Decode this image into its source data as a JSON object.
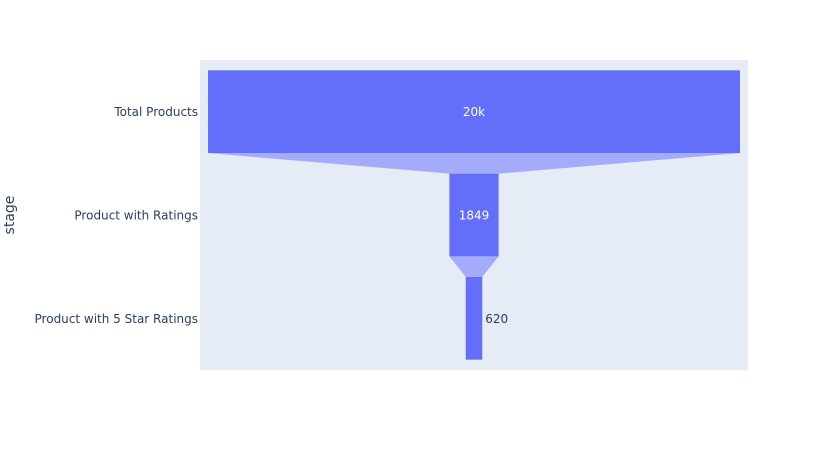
{
  "chart_data": {
    "type": "funnel",
    "ylabel": "stage",
    "categories": [
      "Total Products",
      "Product with Ratings",
      "Product with 5 Star Ratings"
    ],
    "values": [
      20000,
      1849,
      620
    ],
    "value_labels": [
      "20k",
      "1849",
      "620"
    ],
    "grid": false,
    "legend": "none",
    "colors": {
      "bar": "#636efa",
      "connector": "#a5abfb",
      "plot_bg": "#e5ecf6",
      "text_dark": "#2a3f5f",
      "text_light": "#ffffff"
    }
  }
}
